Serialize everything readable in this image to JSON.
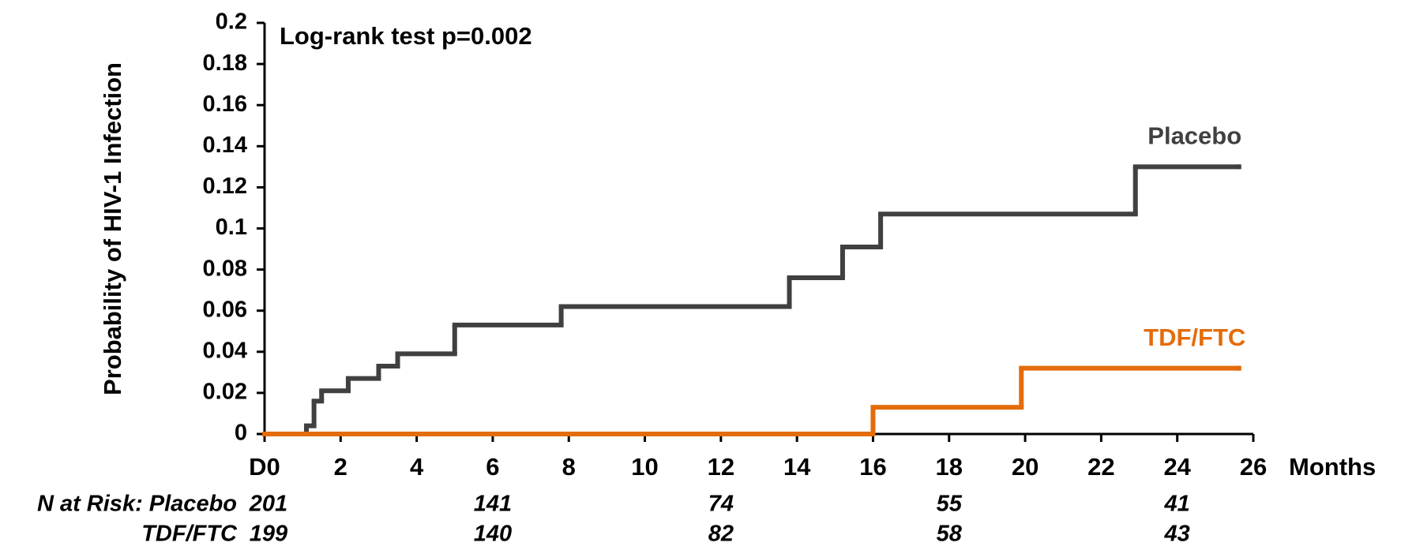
{
  "chart_data": {
    "type": "step",
    "y_label": "Probability of HIV-1 Infection",
    "x_label": "Months",
    "annotation": "Log-rank test p=0.002",
    "xlim": [
      0,
      26
    ],
    "xticks": [
      {
        "value": 0,
        "label": "D0"
      },
      2,
      4,
      6,
      8,
      10,
      12,
      14,
      16,
      18,
      20,
      22,
      24,
      26
    ],
    "ylim": [
      0,
      0.2
    ],
    "yticks": [
      0,
      0.02,
      0.04,
      0.06,
      0.08,
      0.1,
      0.12,
      0.14,
      0.16,
      0.18,
      0.2
    ],
    "series": [
      {
        "name": "Placebo",
        "color": "#404040",
        "x": [
          0,
          1.1,
          1.3,
          1.5,
          2.2,
          3.0,
          3.5,
          5.0,
          7.8,
          13.8,
          15.2,
          16.2,
          22.9,
          25.6
        ],
        "values": [
          0,
          0.004,
          0.016,
          0.021,
          0.027,
          0.033,
          0.039,
          0.053,
          0.062,
          0.076,
          0.091,
          0.107,
          0.13,
          0.13
        ]
      },
      {
        "name": "TDF/FTC",
        "color": "#e46c0a",
        "x": [
          0,
          16.0,
          19.9,
          25.6
        ],
        "values": [
          0,
          0.013,
          0.032,
          0.032
        ]
      }
    ],
    "risk_table": {
      "times": [
        0,
        6,
        12,
        18,
        24
      ],
      "rows": [
        {
          "label": "N at Risk: Placebo",
          "counts": [
            201,
            141,
            74,
            55,
            41
          ]
        },
        {
          "label": "TDF/FTC",
          "counts": [
            199,
            140,
            82,
            58,
            43
          ]
        }
      ]
    }
  }
}
